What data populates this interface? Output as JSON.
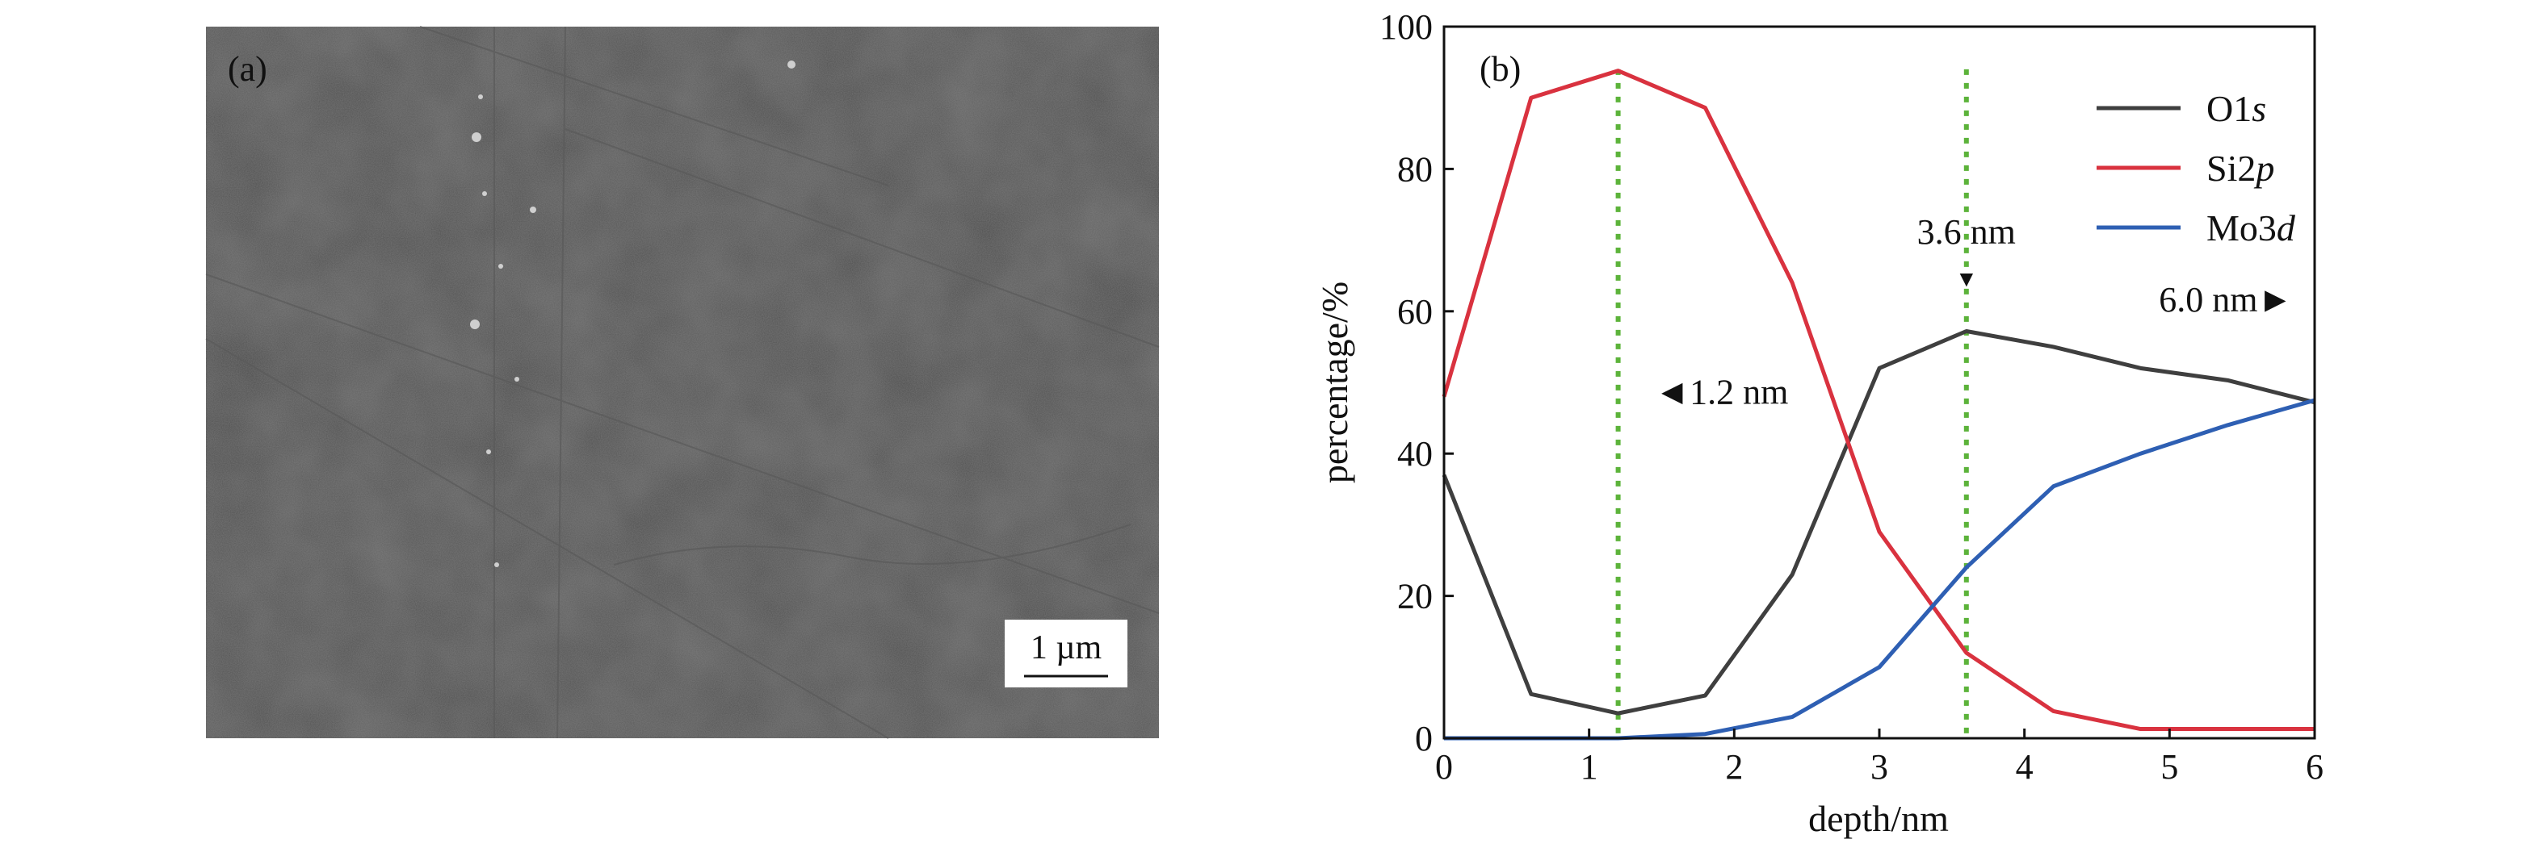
{
  "panel_a": {
    "label": "(a)",
    "scale_bar_label": "1 µm"
  },
  "panel_b": {
    "label": "(b)"
  },
  "colors": {
    "o1s": "#3f3f3f",
    "si2p": "#d9323f",
    "mo3d": "#2e5fb3",
    "guide": "#5cb33a"
  },
  "chart_data": {
    "type": "line",
    "xlabel": "depth/nm",
    "ylabel": "percentage/%",
    "xlim": [
      0,
      6
    ],
    "ylim": [
      0,
      100
    ],
    "xticks": [
      0,
      1,
      2,
      3,
      4,
      5,
      6
    ],
    "yticks": [
      0,
      20,
      40,
      60,
      80,
      100
    ],
    "grid": false,
    "legend_position": "top-right",
    "x": [
      0,
      0.6,
      1.2,
      1.8,
      2.4,
      3.0,
      3.6,
      4.2,
      4.8,
      5.4,
      6.0
    ],
    "series": [
      {
        "name_base": "O1",
        "name_italic": "s",
        "color_key": "o1s",
        "values": [
          37,
          6.2,
          3.5,
          6.0,
          23,
          52,
          57.2,
          55,
          52,
          50.3,
          47.2
        ]
      },
      {
        "name_base": "Si2",
        "name_italic": "p",
        "color_key": "si2p",
        "values": [
          48,
          90,
          93.8,
          88.6,
          64,
          29,
          12,
          3.8,
          1.3,
          1.3,
          1.3
        ]
      },
      {
        "name_base": "Mo3",
        "name_italic": "d",
        "color_key": "mo3d",
        "values": [
          0,
          0,
          0,
          0.6,
          3,
          10,
          24,
          35.4,
          40,
          44,
          47.5
        ]
      }
    ],
    "guides": [
      1.2,
      3.6
    ],
    "annotations": [
      {
        "text": "◄1.2 nm",
        "x": 1.45,
        "y": 47
      },
      {
        "text": "3.6 nm",
        "x": 3.6,
        "y": 69.5
      },
      {
        "text": "▼",
        "x": 3.6,
        "y": 63.5
      },
      {
        "text": "6.0 nm►",
        "x": 5.85,
        "y": 60
      }
    ]
  }
}
